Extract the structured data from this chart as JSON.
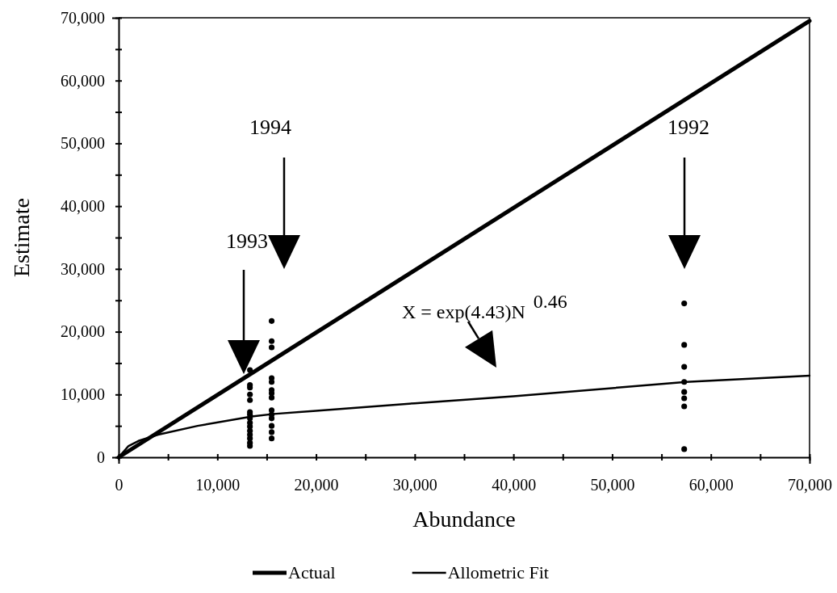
{
  "chart_data": {
    "type": "line",
    "xlabel": "Abundance",
    "ylabel": "Estimate",
    "xlim": [
      0,
      70000
    ],
    "ylim": [
      0,
      70000
    ],
    "xticks": [
      0,
      {
        "value": 5000,
        "label": null
      },
      {
        "value": 10000,
        "label": "10,000"
      },
      {
        "value": 15000,
        "label": null
      },
      {
        "value": 20000,
        "label": "20,000"
      },
      {
        "value": 25000,
        "label": null
      },
      {
        "value": 30000,
        "label": "30,000"
      },
      {
        "value": 35000,
        "label": null
      },
      {
        "value": 40000,
        "label": "40,000"
      },
      {
        "value": 45000,
        "label": null
      },
      {
        "value": 50000,
        "label": "50,000"
      },
      {
        "value": 55000,
        "label": null
      },
      {
        "value": 60000,
        "label": "60,000"
      },
      {
        "value": 65000,
        "label": null
      },
      {
        "value": 70000,
        "label": "70,000"
      }
    ],
    "yticks": [
      0,
      {
        "value": 5000,
        "label": null
      },
      {
        "value": 10000,
        "label": "10,000"
      },
      {
        "value": 15000,
        "label": null
      },
      {
        "value": 20000,
        "label": "20,000"
      },
      {
        "value": 25000,
        "label": null
      },
      {
        "value": 30000,
        "label": "30,000"
      },
      {
        "value": 35000,
        "label": null
      },
      {
        "value": 40000,
        "label": "40,000"
      },
      {
        "value": 45000,
        "label": null
      },
      {
        "value": 50000,
        "label": "50,000"
      },
      {
        "value": 55000,
        "label": null
      },
      {
        "value": 60000,
        "label": "60,000"
      },
      {
        "value": 65000,
        "label": null
      },
      {
        "value": 70000,
        "label": "70,000"
      }
    ],
    "grid": false,
    "legend": "bottom",
    "series": [
      {
        "name": "Actual",
        "color": "#000000",
        "line_style": "solid",
        "marker": "none",
        "x": [
          0,
          70000
        ],
        "values": [
          0,
          69500
        ]
      },
      {
        "name": "Allometric Fit",
        "color": "#000000",
        "line_style": "solid",
        "marker": "none",
        "x": [
          0,
          1000,
          2000,
          4000,
          8000,
          13500,
          15700,
          20000,
          30000,
          40000,
          57500,
          70000
        ],
        "values": [
          0,
          1800,
          2600,
          3600,
          5000,
          6500,
          6900,
          7400,
          8600,
          9700,
          12000,
          13000
        ]
      },
      {
        "type": "scatter",
        "color": "#000000",
        "marker": "circle",
        "x": [
          13300,
          13300,
          13300,
          13300,
          13300,
          13300,
          13300,
          13300,
          13300,
          13300,
          13300,
          13300,
          13300,
          13300,
          13300,
          15500,
          15500,
          15500,
          15500,
          15500,
          15500,
          15500,
          15500,
          15500,
          15500,
          15500,
          15500,
          15500,
          15500,
          57300,
          57300,
          57300,
          57300,
          57300,
          57300,
          57300,
          57300
        ],
        "values": [
          13900,
          11500,
          11100,
          10000,
          9100,
          7200,
          6800,
          6200,
          5500,
          4900,
          4200,
          3600,
          3000,
          2300,
          1800,
          21700,
          18500,
          17500,
          12600,
          12000,
          10700,
          10200,
          9500,
          7500,
          6800,
          6200,
          5000,
          4000,
          3000,
          24500,
          17900,
          14400,
          12000,
          10400,
          9400,
          8100,
          1300
        ]
      }
    ],
    "annotations": [
      "1993",
      "1994",
      "1992",
      "X = exp(4.43)N$^{0.46}$"
    ]
  }
}
